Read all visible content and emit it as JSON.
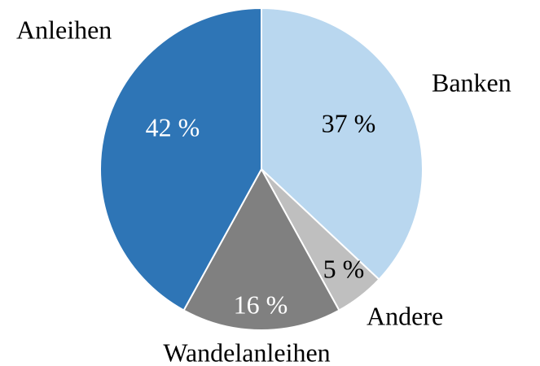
{
  "chart_data": {
    "type": "pie",
    "categories": [
      "Banken",
      "Andere",
      "Wandelanleihen",
      "Anleihen"
    ],
    "values": [
      37,
      5,
      16,
      42
    ],
    "value_labels": [
      "37 %",
      "5 %",
      "16 %",
      "42 %"
    ],
    "colors": [
      "#b9d7ef",
      "#bfbfbf",
      "#808080",
      "#2e75b6"
    ]
  }
}
